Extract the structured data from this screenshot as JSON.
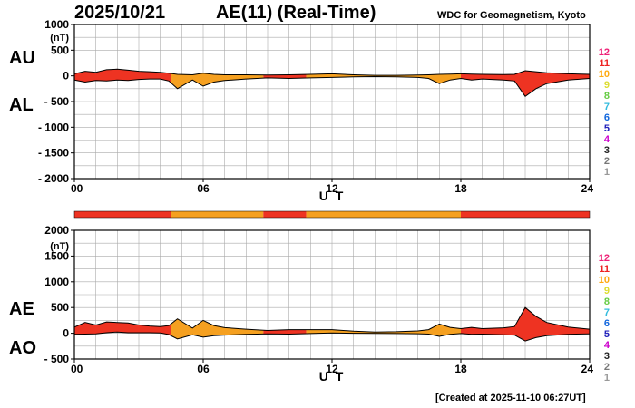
{
  "header": {
    "date": "2025/10/21",
    "title": "AE(11) (Real-Time)",
    "institution": "WDC for Geomagnetism, Kyoto"
  },
  "footer": {
    "created": "[Created at 2025-11-10 06:27UT]"
  },
  "colors": {
    "activity": "#ee3322",
    "moderate": "#f5a020",
    "level_scale": [
      "#cccccc",
      "#999999",
      "#777777",
      "#222222",
      "#cc00cc",
      "#2222bb",
      "#1166dd",
      "#33bbdd",
      "#66cc44",
      "#dddd33",
      "#ffaa11",
      "#ee2222",
      "#ee2277"
    ]
  },
  "level_scale_labels": [
    "1",
    "2",
    "3",
    "4",
    "5",
    "6",
    "7",
    "8",
    "9",
    "10",
    "11",
    "12"
  ],
  "chart_data": [
    {
      "type": "area",
      "panel": "upper",
      "side_labels": [
        "AU",
        "AL"
      ],
      "y_unit": "(nT)",
      "xlabel": "U T",
      "xlim": [
        0,
        24
      ],
      "ylim": [
        -2000,
        1000
      ],
      "y_ticks": [
        "1000",
        "500",
        "0",
        "- 500",
        "- 1000",
        "- 1500",
        "- 2000"
      ],
      "x_ticks": [
        "00",
        "06",
        "12",
        "18",
        "24"
      ],
      "grid": true,
      "series": [
        {
          "name": "AU",
          "x": [
            0,
            0.5,
            1,
            1.5,
            2,
            2.5,
            3,
            3.5,
            4,
            4.4,
            4.8,
            5.5,
            6,
            6.5,
            7,
            8,
            9,
            10,
            11,
            12,
            13,
            14,
            15,
            16,
            16.5,
            17,
            17.5,
            18,
            18.5,
            19,
            20,
            20.5,
            21,
            21.5,
            22,
            23,
            24
          ],
          "values": [
            40,
            90,
            70,
            120,
            130,
            110,
            90,
            80,
            70,
            50,
            30,
            20,
            50,
            30,
            20,
            20,
            15,
            20,
            30,
            40,
            20,
            10,
            10,
            15,
            20,
            30,
            35,
            40,
            35,
            30,
            25,
            30,
            100,
            80,
            60,
            40,
            30
          ]
        },
        {
          "name": "AL",
          "x": [
            0,
            0.5,
            1,
            1.5,
            2,
            2.5,
            3,
            3.5,
            4,
            4.4,
            4.8,
            5.5,
            6,
            6.5,
            7,
            8,
            9,
            10,
            11,
            12,
            13,
            14,
            15,
            16,
            16.5,
            17,
            17.5,
            18,
            18.5,
            19,
            20,
            20.5,
            21,
            21.5,
            22,
            23,
            24
          ],
          "values": [
            -80,
            -120,
            -90,
            -100,
            -80,
            -90,
            -70,
            -60,
            -60,
            -100,
            -250,
            -80,
            -200,
            -120,
            -90,
            -60,
            -40,
            -50,
            -40,
            -30,
            -20,
            -15,
            -20,
            -30,
            -50,
            -150,
            -80,
            -50,
            -80,
            -60,
            -80,
            -100,
            -400,
            -250,
            -150,
            -80,
            -50
          ]
        }
      ]
    },
    {
      "type": "area",
      "panel": "lower",
      "side_labels": [
        "AE",
        "AO"
      ],
      "y_unit": "(nT)",
      "xlabel": "U T",
      "xlim": [
        0,
        24
      ],
      "ylim": [
        -500,
        2000
      ],
      "y_ticks": [
        "2000",
        "1500",
        "1000",
        "500",
        "0",
        "- 500"
      ],
      "x_ticks": [
        "00",
        "06",
        "12",
        "18",
        "24"
      ],
      "grid": true,
      "series": [
        {
          "name": "AE",
          "x": [
            0,
            0.5,
            1,
            1.5,
            2,
            2.5,
            3,
            3.5,
            4,
            4.4,
            4.8,
            5.5,
            6,
            6.5,
            7,
            8,
            9,
            10,
            11,
            12,
            13,
            14,
            15,
            16,
            16.5,
            17,
            17.5,
            18,
            18.5,
            19,
            20,
            20.5,
            21,
            21.5,
            22,
            23,
            24
          ],
          "values": [
            120,
            210,
            160,
            220,
            210,
            200,
            160,
            140,
            130,
            150,
            280,
            100,
            250,
            150,
            110,
            80,
            55,
            70,
            70,
            70,
            40,
            25,
            30,
            45,
            70,
            180,
            115,
            90,
            115,
            90,
            105,
            130,
            500,
            330,
            210,
            120,
            80
          ]
        },
        {
          "name": "AO",
          "x": [
            0,
            0.5,
            1,
            1.5,
            2,
            2.5,
            3,
            3.5,
            4,
            4.4,
            4.8,
            5.5,
            6,
            6.5,
            7,
            8,
            9,
            10,
            11,
            12,
            13,
            14,
            15,
            16,
            16.5,
            17,
            17.5,
            18,
            18.5,
            19,
            20,
            20.5,
            21,
            21.5,
            22,
            23,
            24
          ],
          "values": [
            -20,
            -15,
            -10,
            10,
            25,
            10,
            10,
            10,
            5,
            -25,
            -110,
            -30,
            -75,
            -45,
            -35,
            -20,
            -12,
            -15,
            -5,
            5,
            0,
            -3,
            -5,
            -8,
            -15,
            -60,
            -22,
            -5,
            -22,
            -15,
            -28,
            -35,
            -150,
            -85,
            -45,
            -20,
            -10
          ]
        }
      ]
    }
  ],
  "activity_bar": {
    "segments": [
      {
        "start": 0,
        "end": 4.5,
        "level": "activity"
      },
      {
        "start": 4.5,
        "end": 8.8,
        "level": "moderate"
      },
      {
        "start": 8.8,
        "end": 10.8,
        "level": "activity"
      },
      {
        "start": 10.8,
        "end": 18,
        "level": "moderate"
      },
      {
        "start": 18,
        "end": 24,
        "level": "activity"
      }
    ]
  }
}
